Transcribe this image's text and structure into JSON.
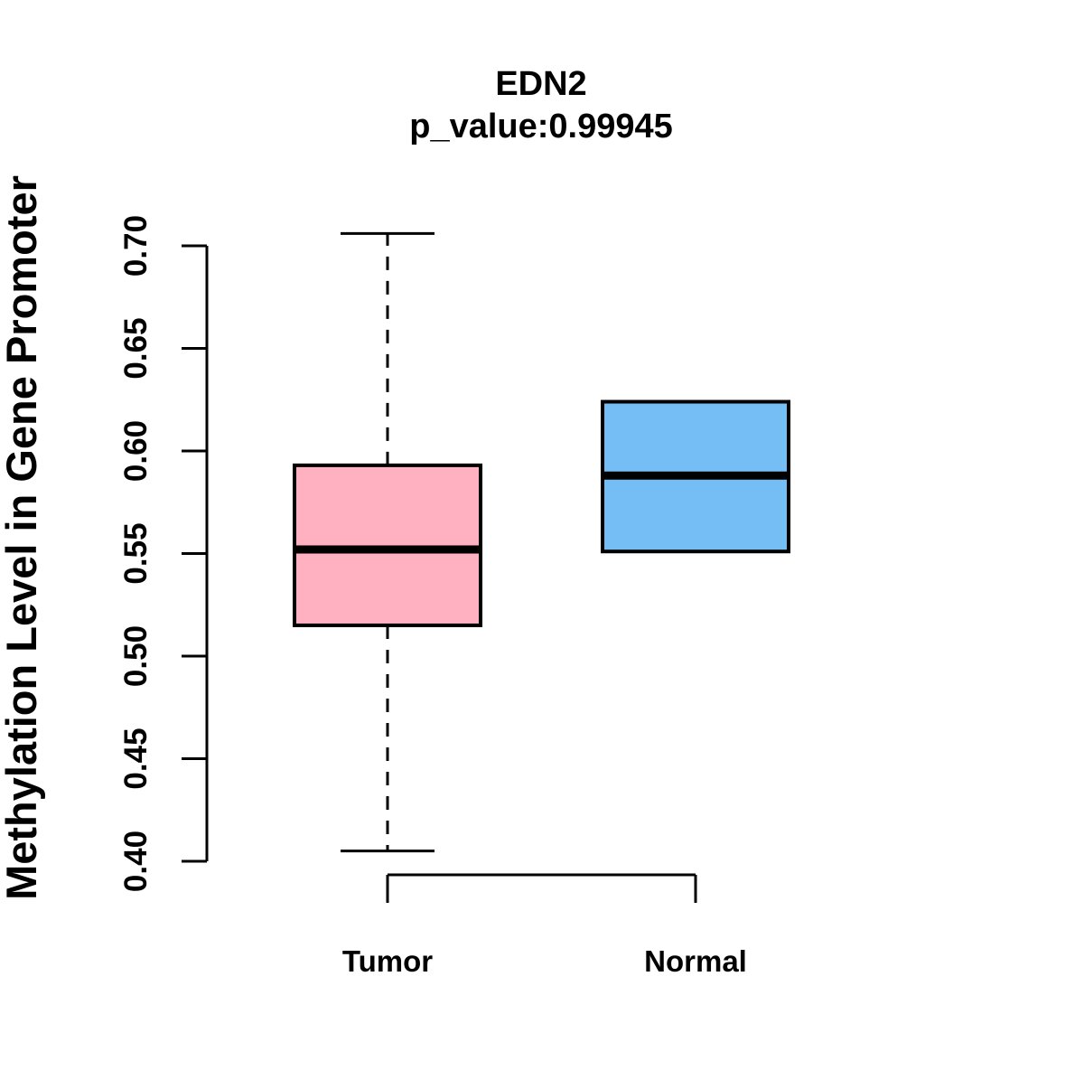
{
  "chart_data": {
    "type": "boxplot",
    "title": "EDN2",
    "subtitle": "p_value:0.99945",
    "p_value": "0.99945",
    "gene": "EDN2",
    "ylabel": "Methylation Level in Gene Promoter",
    "xlabel": "",
    "ylim": [
      0.4,
      0.7
    ],
    "grid": false,
    "y_ticks": [
      {
        "value": 0.4,
        "label": "0.40"
      },
      {
        "value": 0.45,
        "label": "0.45"
      },
      {
        "value": 0.5,
        "label": "0.50"
      },
      {
        "value": 0.55,
        "label": "0.55"
      },
      {
        "value": 0.6,
        "label": "0.60"
      },
      {
        "value": 0.65,
        "label": "0.65"
      },
      {
        "value": 0.7,
        "label": "0.70"
      }
    ],
    "categories": [
      "Tumor",
      "Normal"
    ],
    "series": [
      {
        "name": "Tumor",
        "fill_color": "#FFB1C1",
        "border_color": "#000000",
        "lower_whisker": 0.405,
        "q1": 0.515,
        "median": 0.552,
        "q3": 0.593,
        "upper_whisker": 0.706,
        "whisker_linestyle": "dashed",
        "outliers": []
      },
      {
        "name": "Normal",
        "fill_color": "#74BEF5",
        "border_color": "#000000",
        "lower_whisker": 0.551,
        "q1": 0.551,
        "median": 0.588,
        "q3": 0.624,
        "upper_whisker": 0.624,
        "whisker_linestyle": "dashed",
        "outliers": []
      }
    ]
  }
}
